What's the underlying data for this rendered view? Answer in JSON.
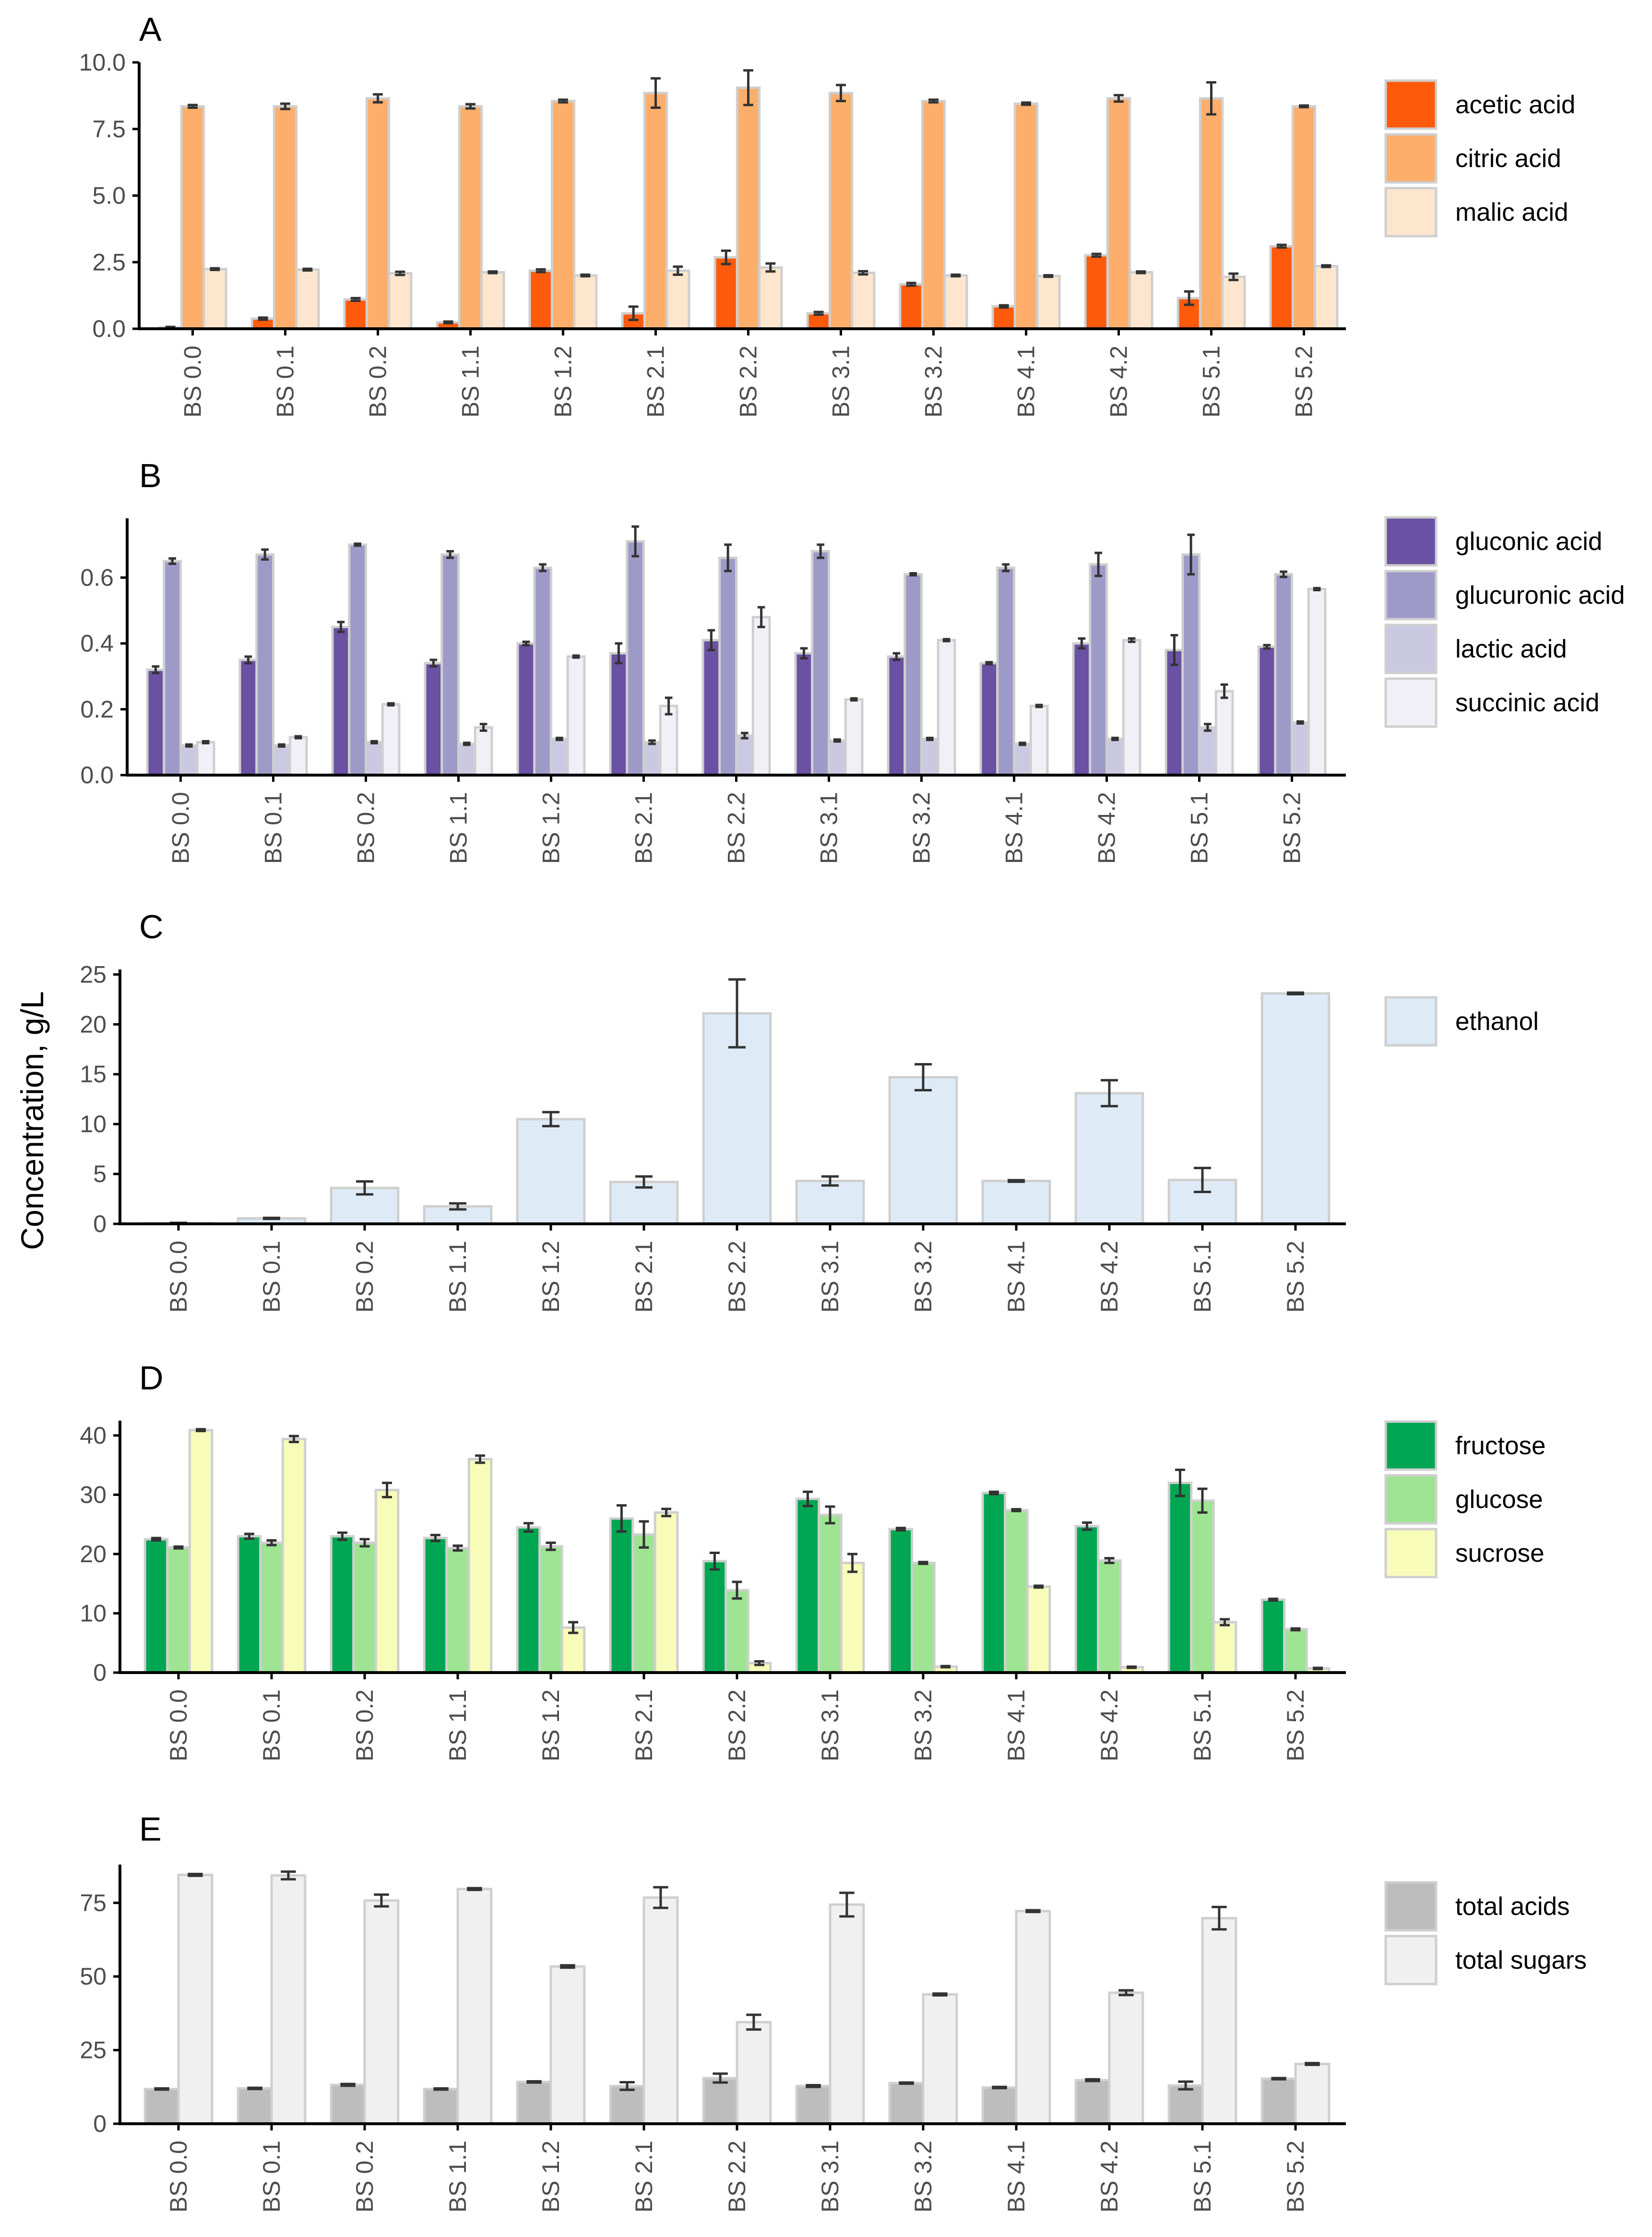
{
  "figure": {
    "shared_ylabel": "Concentration, g/L"
  },
  "categories": [
    "BS 0.0",
    "BS 0.1",
    "BS 0.2",
    "BS 1.1",
    "BS 1.2",
    "BS 2.1",
    "BS 2.2",
    "BS 3.1",
    "BS 3.2",
    "BS 4.1",
    "BS 4.2",
    "BS 5.1",
    "BS 5.2"
  ],
  "chart_data": [
    {
      "panel": "A",
      "type": "bar",
      "ylim": [
        0,
        10.0
      ],
      "yticks": [
        "0.0",
        "2.5",
        "5.0",
        "7.5",
        "10.0"
      ],
      "ytick_values": [
        0,
        2.5,
        5.0,
        7.5,
        10.0
      ],
      "grid": false,
      "legend_position": "right",
      "series": [
        {
          "name": "acetic acid",
          "color": "#fd5a0b",
          "values": [
            0.05,
            0.38,
            1.1,
            0.24,
            2.18,
            0.58,
            2.68,
            0.58,
            1.67,
            0.84,
            2.76,
            1.15,
            3.1
          ],
          "errors": [
            0.02,
            0.04,
            0.05,
            0.03,
            0.05,
            0.25,
            0.25,
            0.05,
            0.05,
            0.04,
            0.05,
            0.25,
            0.05
          ]
        },
        {
          "name": "citric acid",
          "color": "#fdae6b",
          "values": [
            8.35,
            8.35,
            8.65,
            8.35,
            8.55,
            8.85,
            9.05,
            8.85,
            8.55,
            8.45,
            8.65,
            8.65,
            8.35
          ],
          "errors": [
            0.05,
            0.1,
            0.15,
            0.08,
            0.05,
            0.55,
            0.65,
            0.3,
            0.05,
            0.04,
            0.12,
            0.6,
            0.03
          ]
        },
        {
          "name": "malic acid",
          "color": "#fee6ce",
          "values": [
            2.24,
            2.22,
            2.08,
            2.12,
            2.0,
            2.18,
            2.3,
            2.1,
            2.0,
            1.98,
            2.12,
            1.95,
            2.35
          ],
          "errors": [
            0.03,
            0.03,
            0.06,
            0.03,
            0.03,
            0.15,
            0.15,
            0.06,
            0.03,
            0.03,
            0.03,
            0.12,
            0.03
          ]
        }
      ]
    },
    {
      "panel": "B",
      "type": "bar",
      "ylim": [
        0,
        0.78
      ],
      "yticks": [
        "0.0",
        "0.2",
        "0.4",
        "0.6"
      ],
      "ytick_values": [
        0,
        0.2,
        0.4,
        0.6
      ],
      "grid": false,
      "legend_position": "right",
      "series": [
        {
          "name": "gluconic acid",
          "color": "#6a51a3",
          "values": [
            0.32,
            0.35,
            0.45,
            0.34,
            0.4,
            0.37,
            0.41,
            0.37,
            0.36,
            0.34,
            0.4,
            0.38,
            0.39
          ],
          "errors": [
            0.01,
            0.01,
            0.015,
            0.01,
            0.005,
            0.03,
            0.03,
            0.015,
            0.01,
            0.003,
            0.015,
            0.045,
            0.005
          ]
        },
        {
          "name": "glucuronic acid",
          "color": "#9e9ac8",
          "values": [
            0.65,
            0.67,
            0.7,
            0.67,
            0.63,
            0.71,
            0.66,
            0.68,
            0.61,
            0.63,
            0.64,
            0.67,
            0.61
          ],
          "errors": [
            0.008,
            0.015,
            0.003,
            0.01,
            0.01,
            0.045,
            0.04,
            0.02,
            0.003,
            0.01,
            0.035,
            0.06,
            0.008
          ]
        },
        {
          "name": "lactic acid",
          "color": "#cbc9e2",
          "values": [
            0.09,
            0.09,
            0.1,
            0.095,
            0.11,
            0.1,
            0.12,
            0.105,
            0.11,
            0.095,
            0.11,
            0.145,
            0.16
          ],
          "errors": [
            0.003,
            0.003,
            0.003,
            0.003,
            0.003,
            0.005,
            0.008,
            0.003,
            0.003,
            0.003,
            0.003,
            0.01,
            0.003
          ]
        },
        {
          "name": "succinic acid",
          "color": "#f2f0f7",
          "values": [
            0.1,
            0.115,
            0.215,
            0.145,
            0.36,
            0.21,
            0.48,
            0.23,
            0.41,
            0.21,
            0.41,
            0.255,
            0.565
          ],
          "errors": [
            0.003,
            0.003,
            0.003,
            0.01,
            0.003,
            0.025,
            0.03,
            0.003,
            0.003,
            0.003,
            0.005,
            0.02,
            0.003
          ]
        }
      ]
    },
    {
      "panel": "C",
      "type": "bar",
      "ylim": [
        0,
        25.5
      ],
      "yticks": [
        "0",
        "5",
        "10",
        "15",
        "20",
        "25"
      ],
      "ytick_values": [
        0,
        5,
        10,
        15,
        20,
        25
      ],
      "grid": false,
      "legend_position": "right",
      "series": [
        {
          "name": "ethanol",
          "color": "#deebf7",
          "values": [
            0.05,
            0.55,
            3.6,
            1.75,
            10.5,
            4.2,
            21.1,
            4.3,
            14.7,
            4.3,
            13.1,
            4.4,
            23.1
          ],
          "errors": [
            0.05,
            0.05,
            0.65,
            0.3,
            0.7,
            0.55,
            3.4,
            0.45,
            1.3,
            0.08,
            1.3,
            1.2,
            0.08
          ]
        }
      ]
    },
    {
      "panel": "D",
      "type": "bar",
      "ylim": [
        0,
        42.5
      ],
      "yticks": [
        "0",
        "10",
        "20",
        "30",
        "40"
      ],
      "ytick_values": [
        0,
        10,
        20,
        30,
        40
      ],
      "grid": false,
      "legend_position": "right",
      "series": [
        {
          "name": "fructose",
          "color": "#00a651",
          "values": [
            22.5,
            23.0,
            23.0,
            22.7,
            24.5,
            26.0,
            18.8,
            29.3,
            24.2,
            30.3,
            24.7,
            32.0,
            12.3
          ],
          "errors": [
            0.2,
            0.4,
            0.6,
            0.5,
            0.7,
            2.2,
            1.4,
            1.2,
            0.2,
            0.2,
            0.6,
            2.2,
            0.15
          ]
        },
        {
          "name": "glucose",
          "color": "#9ee493",
          "values": [
            21.1,
            21.9,
            21.9,
            21.0,
            21.3,
            23.3,
            13.9,
            26.6,
            18.5,
            27.4,
            18.9,
            29.0,
            7.3
          ],
          "errors": [
            0.15,
            0.4,
            0.6,
            0.4,
            0.6,
            2.2,
            1.4,
            1.4,
            0.15,
            0.15,
            0.4,
            2.0,
            0.15
          ]
        },
        {
          "name": "sucrose",
          "color": "#f7fcb9",
          "values": [
            40.9,
            39.4,
            30.8,
            36.0,
            7.6,
            27.0,
            1.6,
            18.5,
            1.0,
            14.5,
            0.9,
            8.5,
            0.7
          ],
          "errors": [
            0.15,
            0.5,
            1.2,
            0.6,
            0.9,
            0.6,
            0.3,
            1.5,
            0.1,
            0.15,
            0.1,
            0.5,
            0.1
          ]
        }
      ]
    },
    {
      "panel": "E",
      "type": "bar",
      "ylim": [
        0,
        88
      ],
      "yticks": [
        "0",
        "25",
        "50",
        "75"
      ],
      "ytick_values": [
        0,
        25,
        50,
        75
      ],
      "grid": false,
      "legend_position": "right",
      "series": [
        {
          "name": "total acids",
          "color": "#bdbdbd",
          "values": [
            11.8,
            12.0,
            13.2,
            11.8,
            14.2,
            12.8,
            15.5,
            12.8,
            13.8,
            12.3,
            14.8,
            13.0,
            15.3
          ],
          "errors": [
            0.2,
            0.2,
            0.3,
            0.2,
            0.2,
            1.3,
            1.5,
            0.3,
            0.2,
            0.2,
            0.3,
            1.3,
            0.2
          ]
        },
        {
          "name": "total sugars",
          "color": "#f0f0f0",
          "values": [
            84.5,
            84.3,
            75.8,
            79.7,
            53.4,
            76.8,
            34.5,
            74.4,
            43.9,
            72.2,
            44.5,
            69.8,
            20.3
          ],
          "errors": [
            0.3,
            1.3,
            2.0,
            0.3,
            0.4,
            3.5,
            2.5,
            4.0,
            0.3,
            0.3,
            0.8,
            3.8,
            0.3
          ]
        }
      ]
    }
  ]
}
